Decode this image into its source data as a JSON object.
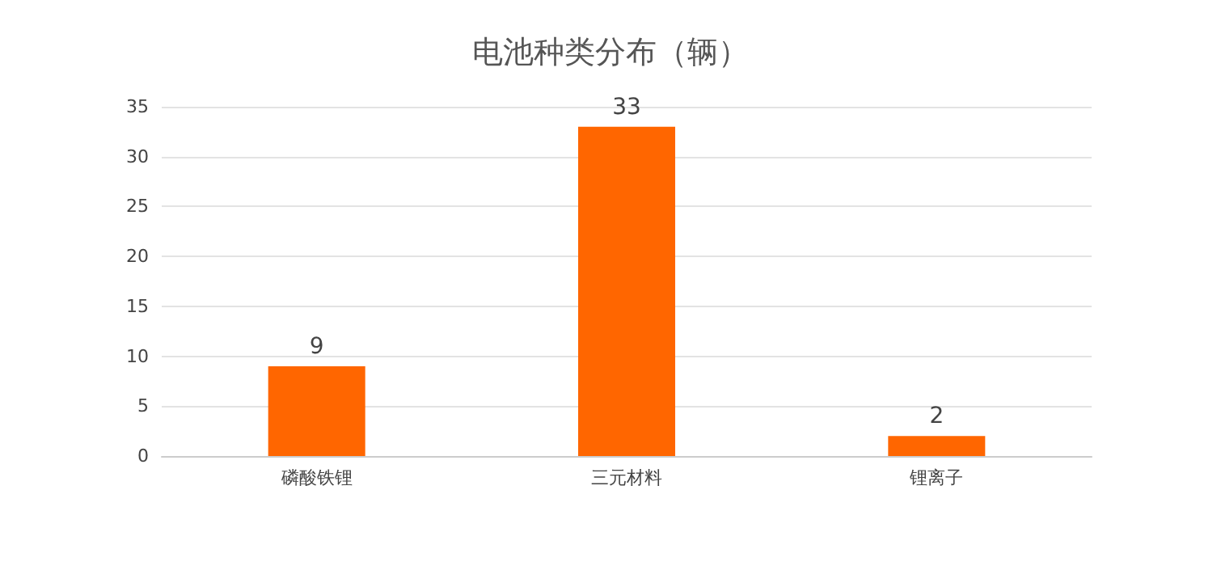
{
  "chart_data": {
    "type": "bar",
    "title": "电池种类分布（辆）",
    "categories": [
      "磷酸铁锂",
      "三元材料",
      "锂离子"
    ],
    "series": [
      {
        "color": "#ff6600",
        "values": [
          9,
          33,
          2
        ]
      }
    ],
    "ylim": [
      0,
      35
    ],
    "yticks": [
      0,
      5,
      10,
      15,
      20,
      25,
      30,
      35
    ],
    "grid": "y",
    "data_labels": true
  }
}
